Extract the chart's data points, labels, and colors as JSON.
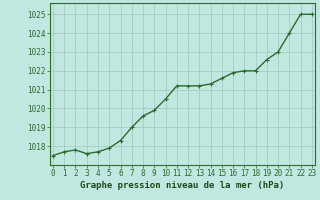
{
  "x": [
    0,
    1,
    2,
    3,
    4,
    5,
    6,
    7,
    8,
    9,
    10,
    11,
    12,
    13,
    14,
    15,
    16,
    17,
    18,
    19,
    20,
    21,
    22,
    23
  ],
  "y": [
    1017.5,
    1017.7,
    1017.8,
    1017.6,
    1017.7,
    1017.9,
    1018.3,
    1019.0,
    1019.6,
    1019.9,
    1020.5,
    1021.2,
    1021.2,
    1021.2,
    1021.3,
    1021.6,
    1021.9,
    1022.0,
    1022.0,
    1022.6,
    1023.0,
    1024.0,
    1025.0,
    1025.0
  ],
  "line_color": "#2d6a2d",
  "marker": "+",
  "marker_color": "#2d6a2d",
  "bg_color": "#c0e8e0",
  "grid_color": "#a0c8c0",
  "xlabel": "Graphe pression niveau de la mer (hPa)",
  "xlabel_color": "#1a4a1a",
  "tick_color": "#2d6a2d",
  "spine_color": "#2d6a2d",
  "ylim_min": 1017.0,
  "ylim_max": 1025.6,
  "yticks": [
    1018,
    1019,
    1020,
    1021,
    1022,
    1023,
    1024,
    1025
  ],
  "xticks": [
    0,
    1,
    2,
    3,
    4,
    5,
    6,
    7,
    8,
    9,
    10,
    11,
    12,
    13,
    14,
    15,
    16,
    17,
    18,
    19,
    20,
    21,
    22,
    23
  ],
  "xlabel_fontsize": 6.5,
  "tick_fontsize": 5.5,
  "line_width": 1.0,
  "marker_size": 3.5,
  "marker_edge_width": 0.8
}
